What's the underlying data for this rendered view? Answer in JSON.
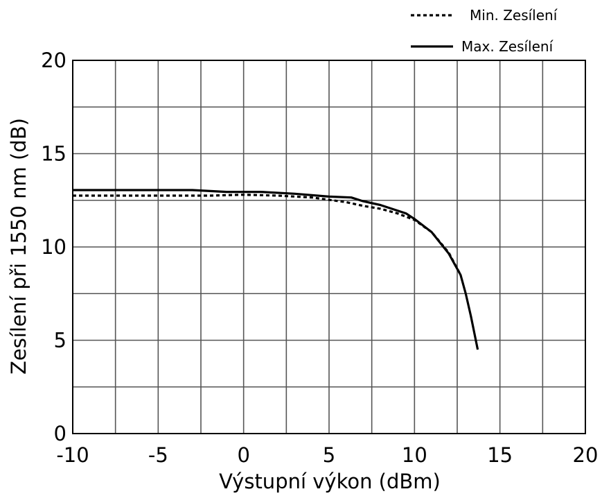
{
  "chart_data": {
    "type": "line",
    "xlabel": "Výstupní výkon (dBm)",
    "ylabel": "Zesílení při 1550 nm (dB)",
    "xlim": [
      -10,
      20
    ],
    "ylim": [
      0,
      20
    ],
    "x_ticks": [
      -10,
      -5,
      0,
      5,
      10,
      15,
      20
    ],
    "y_ticks": [
      0,
      5,
      10,
      15,
      20
    ],
    "x_tick_labels": [
      "-10",
      "-5",
      "0",
      "5",
      "10",
      "15",
      "20"
    ],
    "y_tick_labels": [
      "0",
      "5",
      "10",
      "15",
      "20"
    ],
    "x_grid_step": 2.5,
    "y_grid_step": 2.5,
    "grid": true,
    "legend_position": "top-right, outside plot",
    "series": [
      {
        "name": "Min. Zesílení",
        "style": "dotted",
        "color": "#000000",
        "points": [
          [
            -10,
            12.75
          ],
          [
            -5,
            12.75
          ],
          [
            -2,
            12.75
          ],
          [
            0,
            12.8
          ],
          [
            2,
            12.75
          ],
          [
            4,
            12.65
          ],
          [
            6,
            12.4
          ],
          [
            7,
            12.2
          ],
          [
            8,
            12.05
          ],
          [
            9,
            11.8
          ],
          [
            10,
            11.45
          ],
          [
            11,
            10.8
          ],
          [
            12,
            9.7
          ],
          [
            12.7,
            8.5
          ]
        ]
      },
      {
        "name": "Max. Zesílení",
        "style": "solid",
        "color": "#000000",
        "points": [
          [
            -10,
            13.05
          ],
          [
            -7,
            13.05
          ],
          [
            -3,
            13.05
          ],
          [
            -1,
            12.95
          ],
          [
            0,
            12.95
          ],
          [
            1,
            12.95
          ],
          [
            3,
            12.85
          ],
          [
            5,
            12.7
          ],
          [
            6.3,
            12.65
          ],
          [
            7,
            12.45
          ],
          [
            8,
            12.25
          ],
          [
            9.5,
            11.8
          ],
          [
            10,
            11.5
          ],
          [
            11,
            10.8
          ],
          [
            12,
            9.65
          ],
          [
            12.7,
            8.5
          ],
          [
            13,
            7.5
          ],
          [
            13.3,
            6.3
          ],
          [
            13.7,
            4.5
          ]
        ]
      }
    ]
  }
}
